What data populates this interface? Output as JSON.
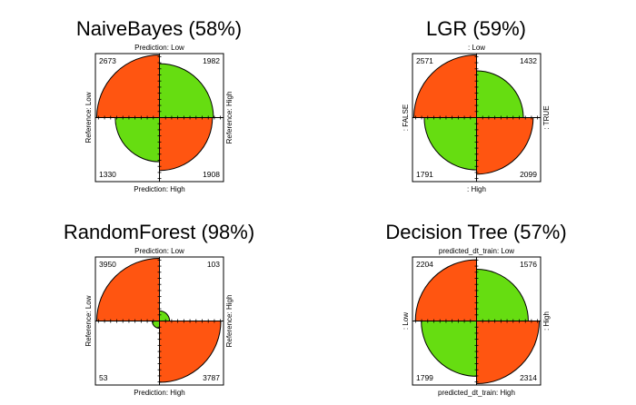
{
  "colors": {
    "agree": "#66dd11",
    "disagree": "#ff5511"
  },
  "chart_data": [
    {
      "type": "fourfold",
      "title": "NaiveBayes (58%)",
      "top_label": "Prediction: Low",
      "bottom_label": "Prediction: High",
      "left_label": "Reference: Low",
      "right_label": "Reference: High",
      "counts": {
        "top_left": 2673,
        "top_right": 1982,
        "bottom_left": 1330,
        "bottom_right": 1908
      }
    },
    {
      "type": "fourfold",
      "title": "LGR (59%)",
      "top_label": ": Low",
      "bottom_label": ": High",
      "left_label": ": FALSE",
      "right_label": ": TRUE",
      "counts": {
        "top_left": 2571,
        "top_right": 1432,
        "bottom_left": 1791,
        "bottom_right": 2099
      }
    },
    {
      "type": "fourfold",
      "title": "RandomForest (98%)",
      "top_label": "Prediction: Low",
      "bottom_label": "Prediction: High",
      "left_label": "Reference: Low",
      "right_label": "Reference: High",
      "counts": {
        "top_left": 3950,
        "top_right": 103,
        "bottom_left": 53,
        "bottom_right": 3787
      }
    },
    {
      "type": "fourfold",
      "title": "Decision Tree (57%)",
      "top_label": "predicted_dt_train: Low",
      "bottom_label": "predicted_dt_train: High",
      "left_label": ": Low",
      "right_label": ": High",
      "counts": {
        "top_left": 2204,
        "top_right": 1576,
        "bottom_left": 1799,
        "bottom_right": 2314
      }
    }
  ]
}
